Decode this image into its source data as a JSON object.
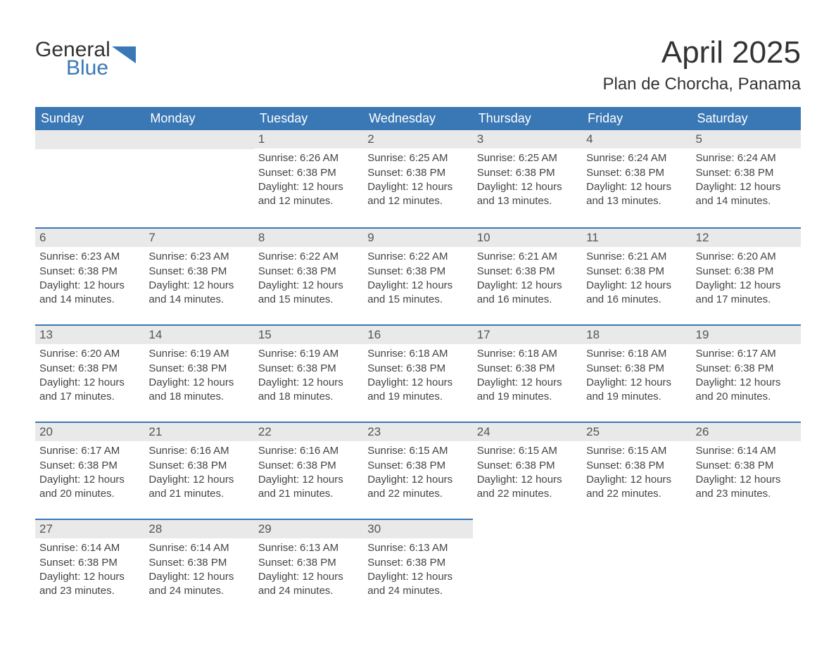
{
  "brand": {
    "text1": "General",
    "text2": "Blue",
    "color_general": "#333333",
    "color_blue": "#3a78b5",
    "triangle_color": "#3a78b5"
  },
  "title": "April 2025",
  "location": "Plan de Chorcha, Panama",
  "colors": {
    "header_bg": "#3a78b5",
    "header_text": "#ffffff",
    "day_number_bg": "#e9e9e9",
    "day_number_border": "#3a78b5",
    "body_bg": "#ffffff",
    "text": "#333333"
  },
  "calendar": {
    "type": "table",
    "columns": [
      "Sunday",
      "Monday",
      "Tuesday",
      "Wednesday",
      "Thursday",
      "Friday",
      "Saturday"
    ],
    "weeks": [
      [
        {
          "day": "",
          "sunrise": "",
          "sunset": "",
          "daylight1": "",
          "daylight2": ""
        },
        {
          "day": "",
          "sunrise": "",
          "sunset": "",
          "daylight1": "",
          "daylight2": ""
        },
        {
          "day": "1",
          "sunrise": "Sunrise: 6:26 AM",
          "sunset": "Sunset: 6:38 PM",
          "daylight1": "Daylight: 12 hours",
          "daylight2": "and 12 minutes."
        },
        {
          "day": "2",
          "sunrise": "Sunrise: 6:25 AM",
          "sunset": "Sunset: 6:38 PM",
          "daylight1": "Daylight: 12 hours",
          "daylight2": "and 12 minutes."
        },
        {
          "day": "3",
          "sunrise": "Sunrise: 6:25 AM",
          "sunset": "Sunset: 6:38 PM",
          "daylight1": "Daylight: 12 hours",
          "daylight2": "and 13 minutes."
        },
        {
          "day": "4",
          "sunrise": "Sunrise: 6:24 AM",
          "sunset": "Sunset: 6:38 PM",
          "daylight1": "Daylight: 12 hours",
          "daylight2": "and 13 minutes."
        },
        {
          "day": "5",
          "sunrise": "Sunrise: 6:24 AM",
          "sunset": "Sunset: 6:38 PM",
          "daylight1": "Daylight: 12 hours",
          "daylight2": "and 14 minutes."
        }
      ],
      [
        {
          "day": "6",
          "sunrise": "Sunrise: 6:23 AM",
          "sunset": "Sunset: 6:38 PM",
          "daylight1": "Daylight: 12 hours",
          "daylight2": "and 14 minutes."
        },
        {
          "day": "7",
          "sunrise": "Sunrise: 6:23 AM",
          "sunset": "Sunset: 6:38 PM",
          "daylight1": "Daylight: 12 hours",
          "daylight2": "and 14 minutes."
        },
        {
          "day": "8",
          "sunrise": "Sunrise: 6:22 AM",
          "sunset": "Sunset: 6:38 PM",
          "daylight1": "Daylight: 12 hours",
          "daylight2": "and 15 minutes."
        },
        {
          "day": "9",
          "sunrise": "Sunrise: 6:22 AM",
          "sunset": "Sunset: 6:38 PM",
          "daylight1": "Daylight: 12 hours",
          "daylight2": "and 15 minutes."
        },
        {
          "day": "10",
          "sunrise": "Sunrise: 6:21 AM",
          "sunset": "Sunset: 6:38 PM",
          "daylight1": "Daylight: 12 hours",
          "daylight2": "and 16 minutes."
        },
        {
          "day": "11",
          "sunrise": "Sunrise: 6:21 AM",
          "sunset": "Sunset: 6:38 PM",
          "daylight1": "Daylight: 12 hours",
          "daylight2": "and 16 minutes."
        },
        {
          "day": "12",
          "sunrise": "Sunrise: 6:20 AM",
          "sunset": "Sunset: 6:38 PM",
          "daylight1": "Daylight: 12 hours",
          "daylight2": "and 17 minutes."
        }
      ],
      [
        {
          "day": "13",
          "sunrise": "Sunrise: 6:20 AM",
          "sunset": "Sunset: 6:38 PM",
          "daylight1": "Daylight: 12 hours",
          "daylight2": "and 17 minutes."
        },
        {
          "day": "14",
          "sunrise": "Sunrise: 6:19 AM",
          "sunset": "Sunset: 6:38 PM",
          "daylight1": "Daylight: 12 hours",
          "daylight2": "and 18 minutes."
        },
        {
          "day": "15",
          "sunrise": "Sunrise: 6:19 AM",
          "sunset": "Sunset: 6:38 PM",
          "daylight1": "Daylight: 12 hours",
          "daylight2": "and 18 minutes."
        },
        {
          "day": "16",
          "sunrise": "Sunrise: 6:18 AM",
          "sunset": "Sunset: 6:38 PM",
          "daylight1": "Daylight: 12 hours",
          "daylight2": "and 19 minutes."
        },
        {
          "day": "17",
          "sunrise": "Sunrise: 6:18 AM",
          "sunset": "Sunset: 6:38 PM",
          "daylight1": "Daylight: 12 hours",
          "daylight2": "and 19 minutes."
        },
        {
          "day": "18",
          "sunrise": "Sunrise: 6:18 AM",
          "sunset": "Sunset: 6:38 PM",
          "daylight1": "Daylight: 12 hours",
          "daylight2": "and 19 minutes."
        },
        {
          "day": "19",
          "sunrise": "Sunrise: 6:17 AM",
          "sunset": "Sunset: 6:38 PM",
          "daylight1": "Daylight: 12 hours",
          "daylight2": "and 20 minutes."
        }
      ],
      [
        {
          "day": "20",
          "sunrise": "Sunrise: 6:17 AM",
          "sunset": "Sunset: 6:38 PM",
          "daylight1": "Daylight: 12 hours",
          "daylight2": "and 20 minutes."
        },
        {
          "day": "21",
          "sunrise": "Sunrise: 6:16 AM",
          "sunset": "Sunset: 6:38 PM",
          "daylight1": "Daylight: 12 hours",
          "daylight2": "and 21 minutes."
        },
        {
          "day": "22",
          "sunrise": "Sunrise: 6:16 AM",
          "sunset": "Sunset: 6:38 PM",
          "daylight1": "Daylight: 12 hours",
          "daylight2": "and 21 minutes."
        },
        {
          "day": "23",
          "sunrise": "Sunrise: 6:15 AM",
          "sunset": "Sunset: 6:38 PM",
          "daylight1": "Daylight: 12 hours",
          "daylight2": "and 22 minutes."
        },
        {
          "day": "24",
          "sunrise": "Sunrise: 6:15 AM",
          "sunset": "Sunset: 6:38 PM",
          "daylight1": "Daylight: 12 hours",
          "daylight2": "and 22 minutes."
        },
        {
          "day": "25",
          "sunrise": "Sunrise: 6:15 AM",
          "sunset": "Sunset: 6:38 PM",
          "daylight1": "Daylight: 12 hours",
          "daylight2": "and 22 minutes."
        },
        {
          "day": "26",
          "sunrise": "Sunrise: 6:14 AM",
          "sunset": "Sunset: 6:38 PM",
          "daylight1": "Daylight: 12 hours",
          "daylight2": "and 23 minutes."
        }
      ],
      [
        {
          "day": "27",
          "sunrise": "Sunrise: 6:14 AM",
          "sunset": "Sunset: 6:38 PM",
          "daylight1": "Daylight: 12 hours",
          "daylight2": "and 23 minutes."
        },
        {
          "day": "28",
          "sunrise": "Sunrise: 6:14 AM",
          "sunset": "Sunset: 6:38 PM",
          "daylight1": "Daylight: 12 hours",
          "daylight2": "and 24 minutes."
        },
        {
          "day": "29",
          "sunrise": "Sunrise: 6:13 AM",
          "sunset": "Sunset: 6:38 PM",
          "daylight1": "Daylight: 12 hours",
          "daylight2": "and 24 minutes."
        },
        {
          "day": "30",
          "sunrise": "Sunrise: 6:13 AM",
          "sunset": "Sunset: 6:38 PM",
          "daylight1": "Daylight: 12 hours",
          "daylight2": "and 24 minutes."
        },
        {
          "day": "",
          "sunrise": "",
          "sunset": "",
          "daylight1": "",
          "daylight2": ""
        },
        {
          "day": "",
          "sunrise": "",
          "sunset": "",
          "daylight1": "",
          "daylight2": ""
        },
        {
          "day": "",
          "sunrise": "",
          "sunset": "",
          "daylight1": "",
          "daylight2": ""
        }
      ]
    ]
  }
}
